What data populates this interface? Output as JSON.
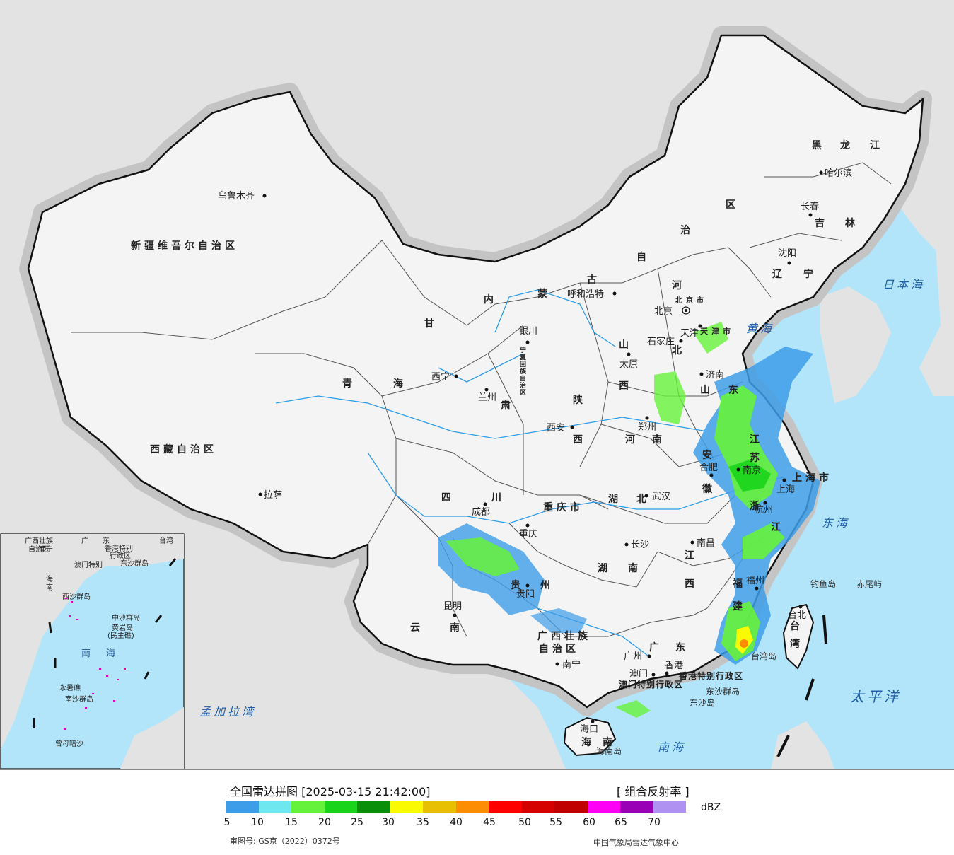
{
  "map": {
    "colors": {
      "ocean": "#b3e5fa",
      "foreign_land": "#e3e3e3",
      "china_land": "#f4f4f4",
      "border": "#111111",
      "river": "#2b9ce6",
      "halo": "#bdbdbd"
    },
    "province_labels": [
      "新疆维吾尔自治区",
      "西藏自治区",
      "青",
      "海",
      "甘",
      "肃",
      "内",
      "蒙",
      "古",
      "自",
      "治",
      "区",
      "黑",
      "龙",
      "江",
      "吉",
      "林",
      "辽",
      "宁",
      "河",
      "北",
      "山",
      "西",
      "陕",
      "西",
      "河",
      "南",
      "山",
      "东",
      "江",
      "苏",
      "安",
      "徽",
      "湖",
      "北",
      "四",
      "川",
      "重庆市",
      "贵",
      "州",
      "云",
      "南",
      "广西壮族",
      "自治区",
      "湖",
      "南",
      "江",
      "西",
      "浙",
      "江",
      "福",
      "建",
      "广",
      "东",
      "海",
      "南",
      "台",
      "湾",
      "上海市",
      "天津市",
      "北京市",
      "宁夏回族自治区",
      "香港特别行政区",
      "澳门特别行政区"
    ],
    "city_labels": [
      "乌鲁木齐",
      "拉萨",
      "西宁",
      "兰州",
      "银川",
      "呼和浩特",
      "北京",
      "天津",
      "石家庄",
      "太原",
      "济南",
      "郑州",
      "西安",
      "合肥",
      "南京",
      "上海",
      "杭州",
      "武汉",
      "成都",
      "重庆",
      "长沙",
      "南昌",
      "福州",
      "贵阳",
      "昆明",
      "南宁",
      "广州",
      "香港",
      "澳门",
      "海口",
      "台北",
      "哈尔滨",
      "长春",
      "沈阳"
    ],
    "sea_labels": [
      "日本海",
      "黄海",
      "东海",
      "太平洋",
      "南海",
      "孟加拉湾"
    ],
    "island_labels": [
      "钓鱼岛",
      "赤尾屿",
      "台湾岛",
      "东沙群岛",
      "东沙岛",
      "海南岛"
    ],
    "inset": {
      "labels": [
        "广西壮族",
        "自治区",
        "广",
        "东",
        "台湾",
        "南宁",
        "香港特别",
        "澳门特别",
        "行政区",
        "东沙群岛",
        "海",
        "南",
        "西沙群岛",
        "中沙群岛",
        "黄岩岛",
        "(民主礁)",
        "南",
        "海",
        "永暑礁",
        "南沙群岛",
        "曾母暗沙"
      ]
    }
  },
  "legend": {
    "title": "全国雷达拼图 [2025-03-15 21:42:00]",
    "product": "[ 组合反射率 ]",
    "unit": "dBZ",
    "ticks": [
      "5",
      "10",
      "15",
      "20",
      "25",
      "30",
      "35",
      "40",
      "45",
      "50",
      "55",
      "60",
      "65",
      "70"
    ],
    "colors": [
      "#3d9de8",
      "#6ee7ef",
      "#66f23a",
      "#18d41a",
      "#0a8f0a",
      "#fafa02",
      "#e7c002",
      "#fd8e04",
      "#fe0000",
      "#d50000",
      "#c00000",
      "#fd00f5",
      "#9901b6",
      "#ae91f0"
    ],
    "approval_number": "审图号: GS京（2022）0372号",
    "credit": "中国气象局雷达气象中心"
  }
}
